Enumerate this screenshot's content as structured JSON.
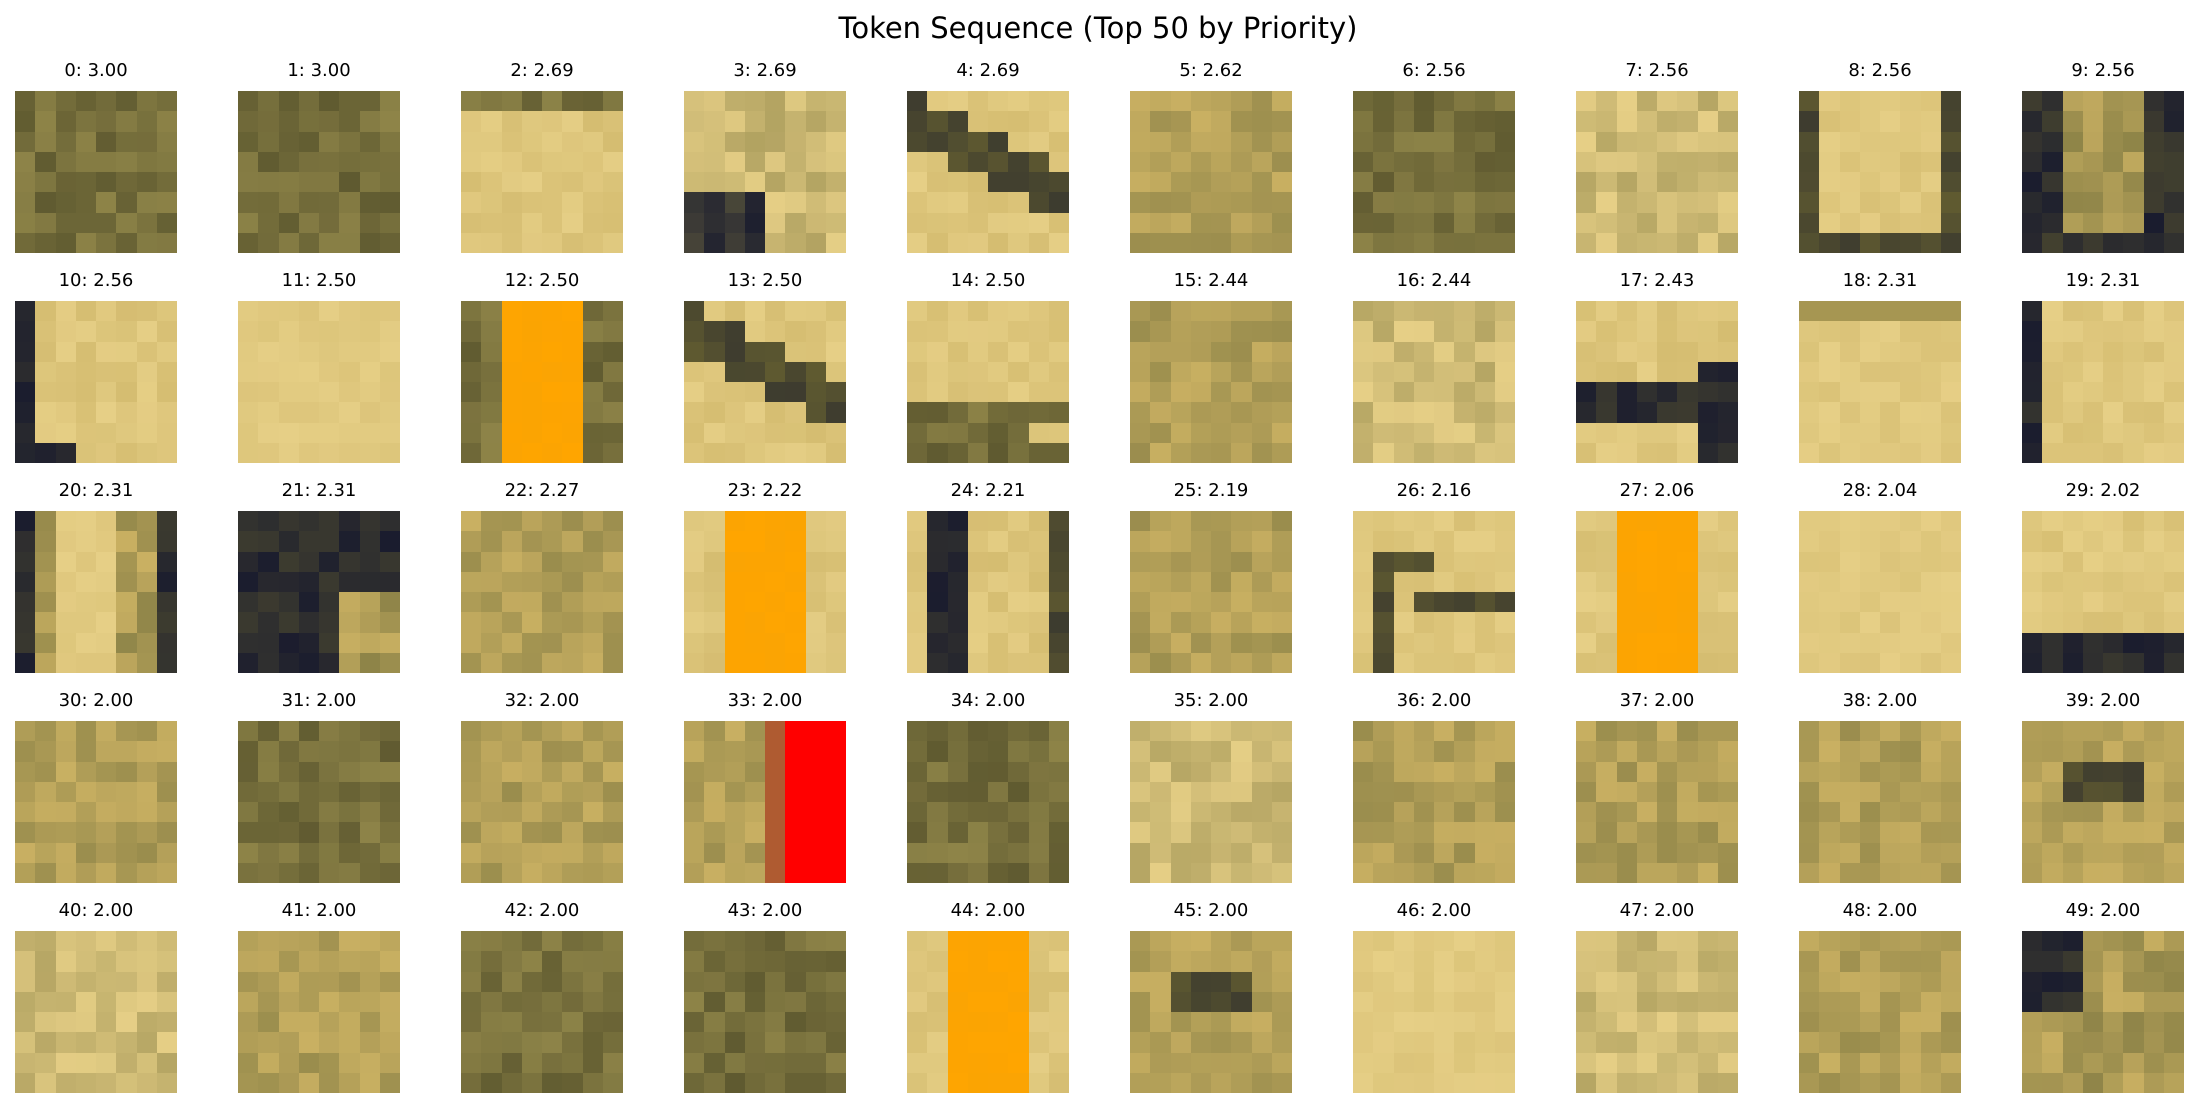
{
  "title": "Token Sequence (Top 50 by Priority)",
  "palette": {
    "light_tan": "#e6cf86",
    "mid_tan": "#c9b062",
    "olive": "#8e8448",
    "dark_olive": "#5f5a30",
    "navy_shadow": "#1a1c2e",
    "highlight_orange": "#ffa500",
    "highlight_red": "#ff0000"
  },
  "chart_data": {
    "type": "image-grid",
    "title": "Token Sequence (Top 50 by Priority)",
    "rows": 5,
    "cols": 10,
    "tokens": [
      {
        "index": 0,
        "priority": "3.00",
        "label": "0: 3.00",
        "style": "dark-mottled"
      },
      {
        "index": 1,
        "priority": "3.00",
        "label": "1: 3.00",
        "style": "dark-mottled"
      },
      {
        "index": 2,
        "priority": "2.69",
        "label": "2: 2.69",
        "style": "light-band-top-dark"
      },
      {
        "index": 3,
        "priority": "2.69",
        "label": "3: 2.69",
        "style": "dark-lower-left"
      },
      {
        "index": 4,
        "priority": "2.69",
        "label": "4: 2.69",
        "style": "dark-diagonal"
      },
      {
        "index": 5,
        "priority": "2.62",
        "label": "5: 2.62",
        "style": "mottled"
      },
      {
        "index": 6,
        "priority": "2.56",
        "label": "6: 2.56",
        "style": "dark-mottled"
      },
      {
        "index": 7,
        "priority": "2.56",
        "label": "7: 2.56",
        "style": "light-mottled"
      },
      {
        "index": 8,
        "priority": "2.56",
        "label": "8: 2.56",
        "style": "frame"
      },
      {
        "index": 9,
        "priority": "2.56",
        "label": "9: 2.56",
        "style": "dark-frame"
      },
      {
        "index": 10,
        "priority": "2.56",
        "label": "10: 2.56",
        "style": "dark-left-corner"
      },
      {
        "index": 11,
        "priority": "2.50",
        "label": "11: 2.50",
        "style": "light"
      },
      {
        "index": 12,
        "priority": "2.50",
        "label": "12: 2.50",
        "style": "orange-stripe"
      },
      {
        "index": 13,
        "priority": "2.50",
        "label": "13: 2.50",
        "style": "dark-diagonal"
      },
      {
        "index": 14,
        "priority": "2.50",
        "label": "14: 2.50",
        "style": "dark-bottom-diagonal"
      },
      {
        "index": 15,
        "priority": "2.44",
        "label": "15: 2.44",
        "style": "mottled"
      },
      {
        "index": 16,
        "priority": "2.44",
        "label": "16: 2.44",
        "style": "light-mottled"
      },
      {
        "index": 17,
        "priority": "2.43",
        "label": "17: 2.43",
        "style": "dark-middle-band"
      },
      {
        "index": 18,
        "priority": "2.31",
        "label": "18: 2.31",
        "style": "light-band-top"
      },
      {
        "index": 19,
        "priority": "2.31",
        "label": "19: 2.31",
        "style": "dark-left-edge"
      },
      {
        "index": 20,
        "priority": "2.31",
        "label": "20: 2.31",
        "style": "vertical-light-stripe"
      },
      {
        "index": 21,
        "priority": "2.31",
        "label": "21: 2.31",
        "style": "very-dark"
      },
      {
        "index": 22,
        "priority": "2.27",
        "label": "22: 2.27",
        "style": "mottled"
      },
      {
        "index": 23,
        "priority": "2.22",
        "label": "23: 2.22",
        "style": "orange-stripe-wide"
      },
      {
        "index": 24,
        "priority": "2.21",
        "label": "24: 2.21",
        "style": "dark-vertical"
      },
      {
        "index": 25,
        "priority": "2.19",
        "label": "25: 2.19",
        "style": "mottled"
      },
      {
        "index": 26,
        "priority": "2.16",
        "label": "26: 2.16",
        "style": "dark-curve"
      },
      {
        "index": 27,
        "priority": "2.06",
        "label": "27: 2.06",
        "style": "orange-stripe-wide"
      },
      {
        "index": 28,
        "priority": "2.04",
        "label": "28: 2.04",
        "style": "light"
      },
      {
        "index": 29,
        "priority": "2.02",
        "label": "29: 2.02",
        "style": "dark-bottom"
      },
      {
        "index": 30,
        "priority": "2.00",
        "label": "30: 2.00",
        "style": "mottled"
      },
      {
        "index": 31,
        "priority": "2.00",
        "label": "31: 2.00",
        "style": "dark-mottled"
      },
      {
        "index": 32,
        "priority": "2.00",
        "label": "32: 2.00",
        "style": "mottled"
      },
      {
        "index": 33,
        "priority": "2.00",
        "label": "33: 2.00",
        "style": "red-right"
      },
      {
        "index": 34,
        "priority": "2.00",
        "label": "34: 2.00",
        "style": "dark-mottled"
      },
      {
        "index": 35,
        "priority": "2.00",
        "label": "35: 2.00",
        "style": "light-mottled"
      },
      {
        "index": 36,
        "priority": "2.00",
        "label": "36: 2.00",
        "style": "mottled"
      },
      {
        "index": 37,
        "priority": "2.00",
        "label": "37: 2.00",
        "style": "mottled"
      },
      {
        "index": 38,
        "priority": "2.00",
        "label": "38: 2.00",
        "style": "mottled"
      },
      {
        "index": 39,
        "priority": "2.00",
        "label": "39: 2.00",
        "style": "dark-spot"
      },
      {
        "index": 40,
        "priority": "2.00",
        "label": "40: 2.00",
        "style": "light-mottled"
      },
      {
        "index": 41,
        "priority": "2.00",
        "label": "41: 2.00",
        "style": "mottled"
      },
      {
        "index": 42,
        "priority": "2.00",
        "label": "42: 2.00",
        "style": "dark-mottled"
      },
      {
        "index": 43,
        "priority": "2.00",
        "label": "43: 2.00",
        "style": "dark-mottled"
      },
      {
        "index": 44,
        "priority": "2.00",
        "label": "44: 2.00",
        "style": "orange-stripe-wide"
      },
      {
        "index": 45,
        "priority": "2.00",
        "label": "45: 2.00",
        "style": "dark-spot"
      },
      {
        "index": 46,
        "priority": "2.00",
        "label": "46: 2.00",
        "style": "light"
      },
      {
        "index": 47,
        "priority": "2.00",
        "label": "47: 2.00",
        "style": "light-mottled"
      },
      {
        "index": 48,
        "priority": "2.00",
        "label": "48: 2.00",
        "style": "mottled"
      },
      {
        "index": 49,
        "priority": "2.00",
        "label": "49: 2.00",
        "style": "dark-upper-left"
      }
    ]
  }
}
